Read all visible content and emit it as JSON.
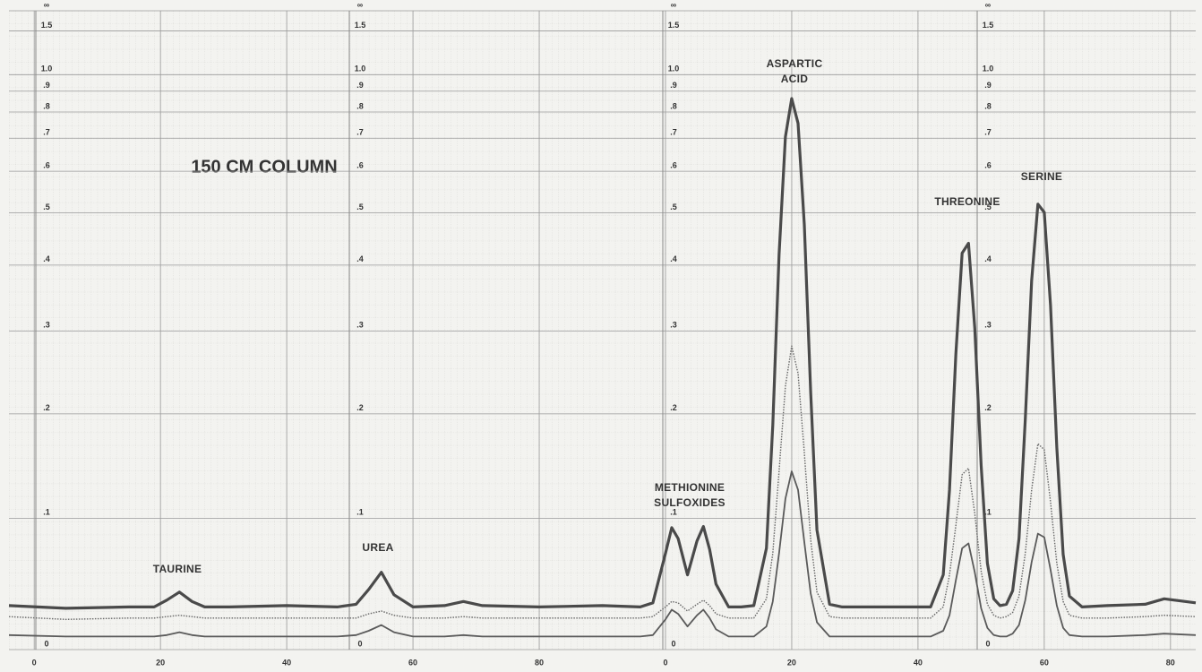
{
  "chart_data": {
    "type": "line",
    "title": "150 CM COLUMN",
    "annotations": [
      [
        "TAURINE"
      ],
      [
        "UREA"
      ],
      [
        "METHIONINE",
        "SULFOXIDES"
      ],
      [
        "ASPARTIC",
        "ACID"
      ],
      [
        "THREONINE"
      ],
      [
        "SERINE"
      ]
    ],
    "x": [
      -4,
      5,
      15,
      19,
      21,
      23,
      25,
      27,
      31,
      40,
      48,
      51,
      53,
      55,
      57,
      60,
      65,
      68,
      71,
      80,
      90,
      96,
      98,
      100,
      101,
      102,
      103.5,
      105,
      106,
      107,
      108,
      110,
      112,
      114,
      116,
      117,
      118,
      119,
      120,
      121,
      122,
      123,
      124,
      126,
      128,
      132,
      138,
      142,
      144,
      145,
      146,
      147,
      148,
      149,
      150,
      151,
      152,
      153,
      154,
      155,
      156,
      157,
      158,
      159,
      160,
      161,
      162,
      163,
      164,
      166,
      170,
      176,
      179,
      184
    ],
    "series": [
      {
        "color": "#4a4a4a",
        "values": [
          0.031,
          0.029,
          0.03,
          0.03,
          0.035,
          0.041,
          0.034,
          0.03,
          0.03,
          0.031,
          0.03,
          0.032,
          0.043,
          0.056,
          0.039,
          0.03,
          0.031,
          0.034,
          0.031,
          0.03,
          0.031,
          0.03,
          0.033,
          0.071,
          0.092,
          0.083,
          0.054,
          0.081,
          0.093,
          0.074,
          0.047,
          0.03,
          0.03,
          0.031,
          0.075,
          0.188,
          0.418,
          0.705,
          0.862,
          0.754,
          0.475,
          0.224,
          0.09,
          0.032,
          0.03,
          0.03,
          0.03,
          0.03,
          0.054,
          0.125,
          0.27,
          0.421,
          0.439,
          0.304,
          0.148,
          0.063,
          0.036,
          0.031,
          0.032,
          0.042,
          0.083,
          0.194,
          0.374,
          0.519,
          0.501,
          0.336,
          0.165,
          0.07,
          0.038,
          0.03,
          0.031,
          0.032,
          0.036,
          0.033
        ]
      },
      {
        "color": "#666666",
        "values": [
          0.023,
          0.021,
          0.022,
          0.022,
          0.023,
          0.024,
          0.023,
          0.022,
          0.022,
          0.022,
          0.022,
          0.022,
          0.025,
          0.027,
          0.024,
          0.022,
          0.022,
          0.023,
          0.022,
          0.022,
          0.022,
          0.022,
          0.023,
          0.03,
          0.034,
          0.033,
          0.027,
          0.032,
          0.035,
          0.031,
          0.025,
          0.022,
          0.022,
          0.022,
          0.036,
          0.071,
          0.142,
          0.231,
          0.28,
          0.246,
          0.16,
          0.082,
          0.041,
          0.023,
          0.022,
          0.022,
          0.022,
          0.022,
          0.03,
          0.054,
          0.094,
          0.139,
          0.145,
          0.104,
          0.057,
          0.032,
          0.024,
          0.022,
          0.023,
          0.026,
          0.038,
          0.071,
          0.125,
          0.169,
          0.163,
          0.114,
          0.063,
          0.034,
          0.024,
          0.022,
          0.022,
          0.023,
          0.024,
          0.023
        ]
      },
      {
        "color": "#5a5a5a",
        "values": [
          0.01,
          0.009,
          0.009,
          0.009,
          0.01,
          0.012,
          0.01,
          0.009,
          0.009,
          0.009,
          0.009,
          0.01,
          0.013,
          0.017,
          0.012,
          0.009,
          0.009,
          0.01,
          0.009,
          0.009,
          0.009,
          0.009,
          0.01,
          0.021,
          0.028,
          0.025,
          0.016,
          0.024,
          0.028,
          0.022,
          0.014,
          0.009,
          0.009,
          0.009,
          0.016,
          0.034,
          0.071,
          0.117,
          0.142,
          0.125,
          0.08,
          0.04,
          0.019,
          0.009,
          0.009,
          0.009,
          0.009,
          0.009,
          0.013,
          0.024,
          0.05,
          0.075,
          0.079,
          0.056,
          0.029,
          0.015,
          0.01,
          0.009,
          0.009,
          0.011,
          0.017,
          0.035,
          0.064,
          0.087,
          0.084,
          0.058,
          0.031,
          0.015,
          0.01,
          0.009,
          0.009,
          0.01,
          0.011,
          0.01
        ]
      }
    ],
    "xlim": [
      -4,
      184
    ],
    "xticks": [
      0,
      20,
      40,
      60,
      80,
      {
        "value": 100,
        "label": "0"
      },
      {
        "value": 120,
        "label": "20"
      },
      {
        "value": 140,
        "label": "40"
      },
      {
        "value": 160,
        "label": "60"
      },
      {
        "value": 180,
        "label": "80"
      }
    ],
    "yscale": "absorbance",
    "ylim": [
      0,
      null
    ],
    "yticks": [
      0,
      {
        "value": 0.1,
        "label": ".1"
      },
      {
        "value": 0.2,
        "label": ".2"
      },
      {
        "value": 0.3,
        "label": ".3"
      },
      {
        "value": 0.4,
        "label": ".4"
      },
      {
        "value": 0.5,
        "label": ".5"
      },
      {
        "value": 0.6,
        "label": ".6"
      },
      {
        "value": 0.7,
        "label": ".7"
      },
      {
        "value": 0.8,
        "label": ".8"
      },
      {
        "value": 0.9,
        "label": ".9"
      },
      {
        "value": 1.0,
        "label": "1.0"
      },
      1.5,
      {
        "value": null,
        "label": "∞"
      }
    ],
    "grid": true
  }
}
